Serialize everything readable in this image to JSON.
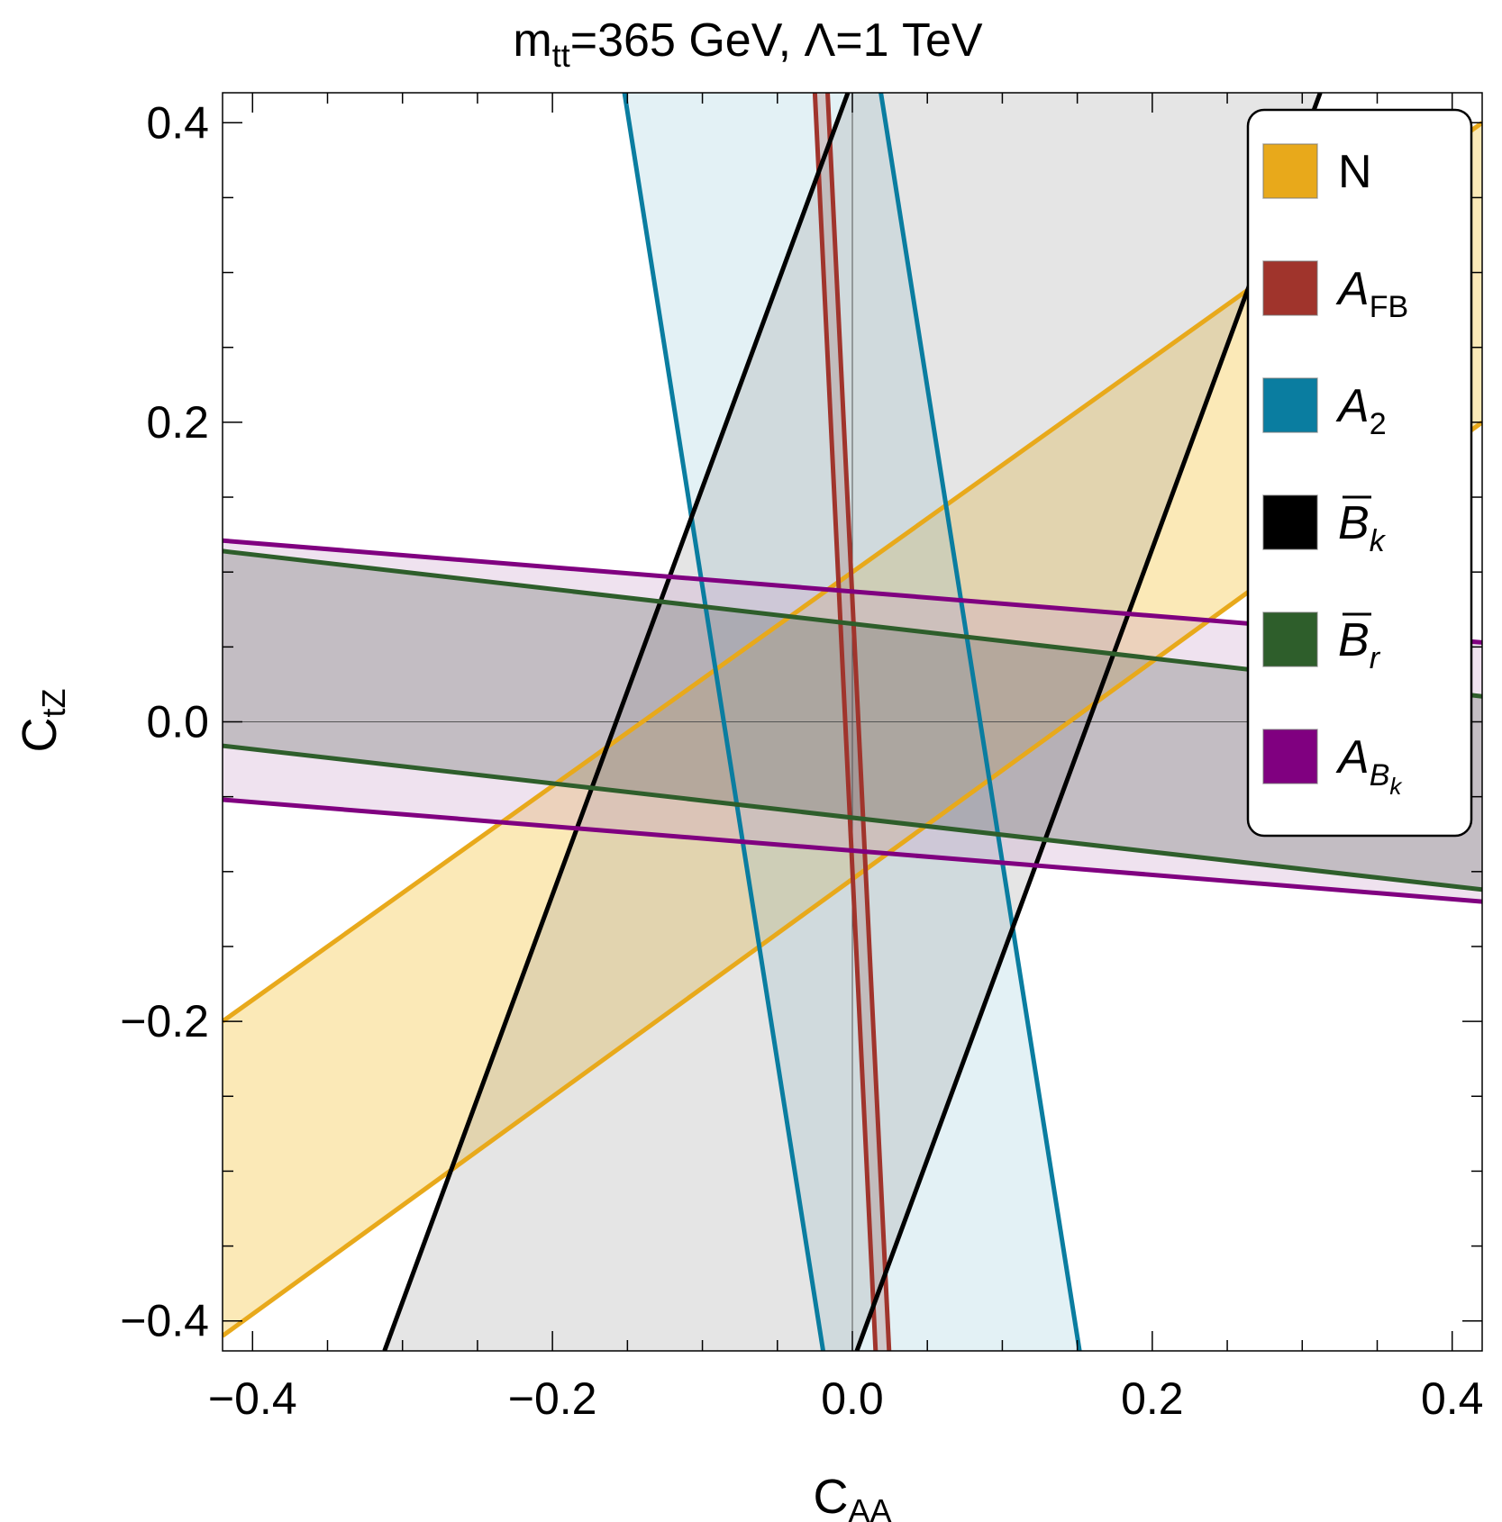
{
  "chart_data": {
    "type": "area",
    "title": {
      "m_base": "m",
      "m_sub": "tt",
      "rest": "=365 GeV, Λ=1 TeV"
    },
    "xlabel": {
      "base": "C",
      "sub": "AA"
    },
    "ylabel": {
      "base": "C",
      "sub": "tZ"
    },
    "xlim": [
      -0.42,
      0.42
    ],
    "ylim": [
      -0.42,
      0.42
    ],
    "xticks": [
      -0.4,
      -0.2,
      0.0,
      0.2,
      0.4
    ],
    "yticks": [
      -0.4,
      -0.2,
      0.0,
      0.2,
      0.4
    ],
    "xtick_labels": [
      "−0.4",
      "−0.2",
      "0.0",
      "0.2",
      "0.4"
    ],
    "ytick_labels": [
      "−0.4",
      "−0.2",
      "0.0",
      "0.2",
      "0.4"
    ],
    "minor_step": 0.05,
    "grid": false,
    "reference_lines": {
      "x0": true,
      "y0": true
    },
    "legend_position": "top-right",
    "series": [
      {
        "name": "N",
        "label_base": "N",
        "label_sub": "",
        "italic": false,
        "stroke": "#E8A91B",
        "fill": "#F4C542",
        "fill_opacity": 0.38,
        "lines": [
          {
            "p1": [
              -0.42,
              -0.2
            ],
            "p2": [
              0.42,
              0.4
            ]
          },
          {
            "p1": [
              -0.42,
              -0.41
            ],
            "p2": [
              0.42,
              0.2
            ]
          }
        ]
      },
      {
        "name": "A_FB",
        "label_base": "A",
        "label_sub": "FB",
        "italic": true,
        "stroke": "#A0342C",
        "fill": "#A0342C",
        "fill_opacity": 0.28,
        "lines": [
          {
            "p1": [
              -0.025,
              0.42
            ],
            "p2": [
              0.0155,
              -0.42
            ]
          },
          {
            "p1": [
              -0.0165,
              0.42
            ],
            "p2": [
              0.0245,
              -0.42
            ]
          }
        ]
      },
      {
        "name": "A_2",
        "label_base": "A",
        "label_sub": "2",
        "italic": true,
        "stroke": "#0A7DA0",
        "fill": "#9CCEDC",
        "fill_opacity": 0.28,
        "lines": [
          {
            "p1": [
              -0.152,
              0.42
            ],
            "p2": [
              -0.0195,
              -0.42
            ]
          },
          {
            "p1": [
              0.019,
              0.42
            ],
            "p2": [
              0.1515,
              -0.42
            ]
          }
        ]
      },
      {
        "name": "B_k",
        "label_base": "B",
        "label_sub": "k",
        "italic": true,
        "overbar": true,
        "stroke": "#000000",
        "fill": "#9A9A9A",
        "fill_opacity": 0.26,
        "lines": [
          {
            "p1": [
              -0.312,
              -0.42
            ],
            "p2": [
              -0.003,
              0.42
            ]
          },
          {
            "p1": [
              0.003,
              -0.42
            ],
            "p2": [
              0.312,
              0.42
            ]
          }
        ]
      },
      {
        "name": "B_r",
        "label_base": "B",
        "label_sub": "r",
        "italic": true,
        "overbar": true,
        "stroke": "#2E5E2B",
        "fill": "#3C5A3A",
        "fill_opacity": 0.32,
        "lines": [
          {
            "p1": [
              -0.42,
              0.114
            ],
            "p2": [
              0.42,
              0.017
            ]
          },
          {
            "p1": [
              -0.42,
              -0.016
            ],
            "p2": [
              0.42,
              -0.112
            ]
          }
        ]
      },
      {
        "name": "A_Bk",
        "label_base": "A",
        "label_sub": "B",
        "label_subsub": "k",
        "italic": true,
        "stroke": "#800080",
        "fill": "#C9A0C9",
        "fill_opacity": 0.3,
        "lines": [
          {
            "p1": [
              -0.42,
              0.121
            ],
            "p2": [
              0.42,
              0.053
            ]
          },
          {
            "p1": [
              -0.42,
              -0.052
            ],
            "p2": [
              0.42,
              -0.12
            ]
          }
        ]
      }
    ]
  }
}
